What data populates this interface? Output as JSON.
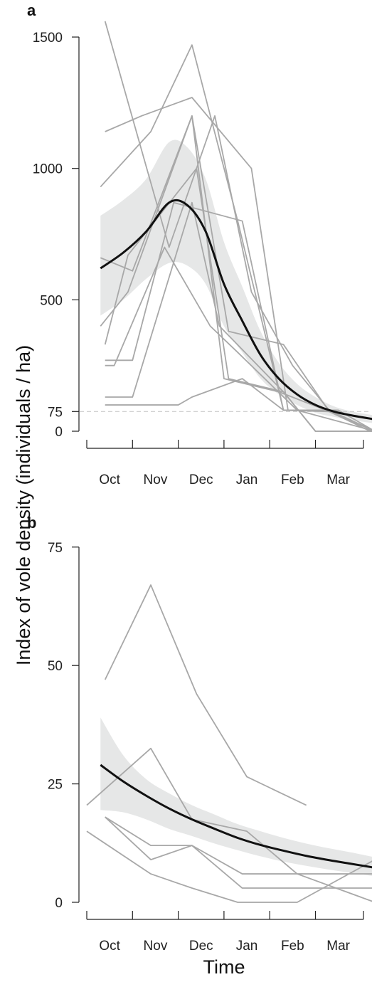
{
  "chart_data": [
    {
      "type": "line",
      "panel_label": "a",
      "x_categories": [
        "Oct",
        "Nov",
        "Dec",
        "Jan",
        "Feb",
        "Mar"
      ],
      "yticks": [
        0,
        75,
        500,
        1000,
        1500
      ],
      "ylim": [
        0,
        1500
      ],
      "reference_line": 75,
      "colors": {
        "individual": "#a8a8a8",
        "mean": "#111111",
        "band": "#e6e7e7",
        "reference": "#cccccc"
      },
      "individual_series": [
        [
          [
            0.3,
            930
          ],
          [
            1.4,
            1140
          ],
          [
            2.3,
            1470
          ],
          [
            3.3,
            800
          ],
          [
            4.3,
            80
          ],
          [
            5.3,
            80
          ],
          [
            6.3,
            0
          ]
        ],
        [
          [
            0.4,
            1560
          ],
          [
            1.8,
            700
          ],
          [
            2.8,
            1200
          ],
          [
            3.6,
            530
          ],
          [
            4.5,
            250
          ],
          [
            5.3,
            80
          ],
          [
            6.3,
            0
          ]
        ],
        [
          [
            0.4,
            1140
          ],
          [
            1.2,
            1200
          ],
          [
            2.3,
            1270
          ],
          [
            3.6,
            1000
          ],
          [
            4.4,
            80
          ],
          [
            5.3,
            80
          ],
          [
            6.3,
            0
          ]
        ],
        [
          [
            0.3,
            660
          ],
          [
            1.0,
            610
          ],
          [
            2.3,
            1200
          ],
          [
            3.0,
            200
          ],
          [
            4.2,
            150
          ],
          [
            5.3,
            75
          ],
          [
            6.3,
            0
          ]
        ],
        [
          [
            0.3,
            400
          ],
          [
            0.9,
            530
          ],
          [
            2.3,
            1200
          ],
          [
            3.1,
            380
          ],
          [
            4.3,
            330
          ],
          [
            5.3,
            75
          ],
          [
            6.2,
            0
          ]
        ],
        [
          [
            0.4,
            330
          ],
          [
            0.9,
            670
          ],
          [
            2.4,
            1000
          ],
          [
            3.1,
            200
          ],
          [
            4.3,
            150
          ],
          [
            5.0,
            0
          ],
          [
            6.3,
            0
          ]
        ],
        [
          [
            0.4,
            270
          ],
          [
            1.0,
            270
          ],
          [
            1.9,
            870
          ],
          [
            3.4,
            800
          ],
          [
            4.3,
            80
          ],
          [
            5.3,
            75
          ],
          [
            6.3,
            0
          ]
        ],
        [
          [
            0.4,
            130
          ],
          [
            1.0,
            130
          ],
          [
            2.3,
            870
          ],
          [
            2.9,
            400
          ],
          [
            4.3,
            150
          ],
          [
            5.0,
            0
          ],
          [
            6.3,
            0
          ]
        ],
        [
          [
            0.4,
            250
          ],
          [
            0.6,
            250
          ],
          [
            1.7,
            700
          ],
          [
            2.7,
            400
          ],
          [
            3.3,
            300
          ],
          [
            4.6,
            80
          ],
          [
            6.3,
            0
          ]
        ],
        [
          [
            0.4,
            100
          ],
          [
            2.0,
            100
          ],
          [
            2.3,
            130
          ],
          [
            3.4,
            200
          ],
          [
            4.3,
            80
          ],
          [
            5.5,
            80
          ],
          [
            6.3,
            0
          ]
        ]
      ],
      "mean_curve": [
        [
          0.3,
          620
        ],
        [
          0.8,
          680
        ],
        [
          1.3,
          760
        ],
        [
          1.8,
          870
        ],
        [
          2.2,
          860
        ],
        [
          2.6,
          760
        ],
        [
          3.0,
          560
        ],
        [
          3.4,
          420
        ],
        [
          3.8,
          290
        ],
        [
          4.2,
          200
        ],
        [
          4.6,
          140
        ],
        [
          5.0,
          100
        ],
        [
          5.4,
          75
        ],
        [
          5.8,
          60
        ],
        [
          6.3,
          45
        ]
      ],
      "band_upper": [
        [
          0.3,
          820
        ],
        [
          0.8,
          880
        ],
        [
          1.3,
          960
        ],
        [
          1.8,
          1100
        ],
        [
          2.2,
          1080
        ],
        [
          2.6,
          960
        ],
        [
          3.0,
          720
        ],
        [
          3.4,
          550
        ],
        [
          3.8,
          380
        ],
        [
          4.2,
          260
        ],
        [
          4.6,
          180
        ],
        [
          5.0,
          130
        ],
        [
          5.4,
          95
        ],
        [
          5.8,
          75
        ],
        [
          6.3,
          60
        ]
      ],
      "band_lower": [
        [
          0.3,
          440
        ],
        [
          0.8,
          500
        ],
        [
          1.3,
          580
        ],
        [
          1.8,
          640
        ],
        [
          2.2,
          630
        ],
        [
          2.6,
          560
        ],
        [
          3.0,
          400
        ],
        [
          3.4,
          300
        ],
        [
          3.8,
          200
        ],
        [
          4.2,
          140
        ],
        [
          4.6,
          100
        ],
        [
          5.0,
          70
        ],
        [
          5.4,
          55
        ],
        [
          5.8,
          42
        ],
        [
          6.3,
          30
        ]
      ]
    },
    {
      "type": "line",
      "panel_label": "b",
      "x_categories": [
        "Oct",
        "Nov",
        "Dec",
        "Jan",
        "Feb",
        "Mar"
      ],
      "yticks": [
        0,
        25,
        50,
        75
      ],
      "ylim": [
        0,
        75
      ],
      "colors": {
        "individual": "#a8a8a8",
        "mean": "#111111",
        "band": "#e6e7e7"
      },
      "individual_series": [
        [
          [
            0.4,
            47
          ],
          [
            1.4,
            67
          ],
          [
            2.4,
            44
          ],
          [
            3.5,
            26.5
          ],
          [
            4.8,
            20.5
          ]
        ],
        [
          [
            0.0,
            20.5
          ],
          [
            1.4,
            32.5
          ],
          [
            2.3,
            17.5
          ],
          [
            3.5,
            15
          ],
          [
            4.6,
            6
          ],
          [
            6.3,
            0
          ]
        ],
        [
          [
            0.0,
            15
          ],
          [
            1.4,
            6
          ],
          [
            2.3,
            3
          ],
          [
            3.3,
            0
          ],
          [
            4.6,
            0
          ],
          [
            6.3,
            9
          ]
        ],
        [
          [
            0.4,
            18
          ],
          [
            1.4,
            9
          ],
          [
            2.3,
            12
          ],
          [
            3.4,
            3
          ],
          [
            4.6,
            3
          ],
          [
            6.3,
            3
          ]
        ],
        [
          [
            0.4,
            18
          ],
          [
            1.4,
            12
          ],
          [
            2.3,
            12
          ],
          [
            3.4,
            6
          ],
          [
            4.6,
            6
          ],
          [
            6.3,
            6
          ]
        ]
      ],
      "mean_curve": [
        [
          0.3,
          29
        ],
        [
          0.8,
          25.5
        ],
        [
          1.3,
          22.5
        ],
        [
          1.8,
          19.8
        ],
        [
          2.3,
          17.5
        ],
        [
          2.8,
          15.5
        ],
        [
          3.3,
          13.6
        ],
        [
          3.8,
          12.1
        ],
        [
          4.3,
          10.9
        ],
        [
          4.8,
          9.8
        ],
        [
          5.3,
          8.9
        ],
        [
          5.8,
          8.1
        ],
        [
          6.3,
          7.3
        ]
      ],
      "band_upper": [
        [
          0.3,
          39
        ],
        [
          0.8,
          31
        ],
        [
          1.3,
          26
        ],
        [
          1.8,
          23
        ],
        [
          2.3,
          20.5
        ],
        [
          2.8,
          18.5
        ],
        [
          3.3,
          16.5
        ],
        [
          3.8,
          15
        ],
        [
          4.3,
          13.6
        ],
        [
          4.8,
          12.4
        ],
        [
          5.3,
          11.4
        ],
        [
          5.8,
          10.5
        ],
        [
          6.3,
          9.5
        ]
      ],
      "band_lower": [
        [
          0.3,
          19.5
        ],
        [
          0.8,
          19
        ],
        [
          1.3,
          17.5
        ],
        [
          1.8,
          15.5
        ],
        [
          2.3,
          14
        ],
        [
          2.8,
          12.4
        ],
        [
          3.3,
          11
        ],
        [
          3.8,
          9.7
        ],
        [
          4.3,
          8.6
        ],
        [
          4.8,
          7.7
        ],
        [
          5.3,
          6.9
        ],
        [
          5.8,
          6.2
        ],
        [
          6.3,
          5.5
        ]
      ]
    }
  ],
  "ylabel": "Index of vole density (individuals / ha)",
  "xlabel": "Time"
}
